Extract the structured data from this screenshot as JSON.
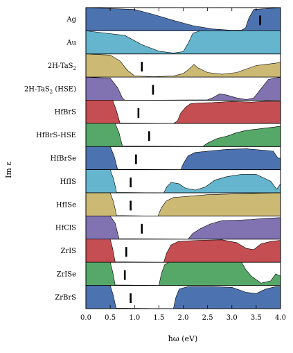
{
  "chart_data": {
    "type": "area",
    "title": "",
    "xlabel": "ħω (eV)",
    "ylabel": "Im ε",
    "xlim": [
      0.0,
      4.0
    ],
    "xticks": [
      "0.0",
      "0.5",
      "1.0",
      "1.5",
      "2.0",
      "2.5",
      "3.0",
      "3.5",
      "4.0"
    ],
    "grid": false,
    "legend": "none",
    "series": [
      {
        "name": "Ag",
        "color": "#4c72b0",
        "marker": 3.58,
        "values": [
          [
            0,
            1
          ],
          [
            1.0,
            0.92
          ],
          [
            1.4,
            0.7
          ],
          [
            1.8,
            0.45
          ],
          [
            2.2,
            0.22
          ],
          [
            2.6,
            0.08
          ],
          [
            3.0,
            0.02
          ],
          [
            3.2,
            0.03
          ],
          [
            3.28,
            0.12
          ],
          [
            3.35,
            0.55
          ],
          [
            3.45,
            0.92
          ],
          [
            4.0,
            1
          ]
        ]
      },
      {
        "name": "Au",
        "color": "#64b5cd",
        "marker": null,
        "values": [
          [
            0,
            1
          ],
          [
            0.8,
            0.8
          ],
          [
            1.15,
            0.4
          ],
          [
            1.5,
            0.12
          ],
          [
            1.8,
            0.04
          ],
          [
            2.0,
            0.1
          ],
          [
            2.1,
            0.45
          ],
          [
            2.2,
            0.9
          ],
          [
            2.35,
            1
          ],
          [
            4.0,
            1
          ]
        ]
      },
      {
        "name": "2H-TaS$_2$",
        "label_main": "2H-TaS",
        "label_sub": "2",
        "label_tail": "",
        "color": "#ccb974",
        "marker": 1.15,
        "values": [
          [
            0,
            1
          ],
          [
            0.5,
            0.95
          ],
          [
            0.7,
            0.7
          ],
          [
            0.85,
            0.3
          ],
          [
            1.0,
            0.05
          ],
          [
            1.4,
            0.02
          ],
          [
            1.8,
            0.05
          ],
          [
            2.0,
            0.15
          ],
          [
            2.15,
            0.4
          ],
          [
            2.22,
            0.55
          ],
          [
            2.3,
            0.4
          ],
          [
            2.5,
            0.2
          ],
          [
            2.8,
            0.12
          ],
          [
            3.1,
            0.2
          ],
          [
            3.3,
            0.35
          ],
          [
            3.5,
            0.5
          ],
          [
            3.7,
            0.55
          ],
          [
            3.9,
            0.6
          ],
          [
            4.0,
            0.65
          ]
        ]
      },
      {
        "name": "2H-TaS$_2$ (HSE)",
        "label_main": "2H-TaS",
        "label_sub": "2",
        "label_tail": " (HSE)",
        "color": "#8172b2",
        "marker": 1.38,
        "values": [
          [
            0,
            1
          ],
          [
            0.5,
            0.95
          ],
          [
            0.65,
            0.55
          ],
          [
            0.75,
            0.1
          ],
          [
            0.8,
            0.0
          ],
          [
            2.5,
            0.02
          ],
          [
            2.6,
            0.1
          ],
          [
            2.75,
            0.28
          ],
          [
            2.9,
            0.22
          ],
          [
            3.1,
            0.1
          ],
          [
            3.3,
            0.03
          ],
          [
            3.45,
            0.1
          ],
          [
            3.6,
            0.5
          ],
          [
            3.75,
            0.9
          ],
          [
            4.0,
            1
          ]
        ]
      },
      {
        "name": "HfBrS",
        "color": "#c44e52",
        "marker": 1.08,
        "values": [
          [
            0,
            1
          ],
          [
            0.55,
            1
          ],
          [
            0.62,
            0.6
          ],
          [
            0.7,
            0.02
          ],
          [
            1.8,
            0.0
          ],
          [
            1.88,
            0.1
          ],
          [
            1.95,
            0.45
          ],
          [
            2.05,
            0.7
          ],
          [
            2.15,
            0.85
          ],
          [
            2.3,
            0.88
          ],
          [
            2.6,
            0.9
          ],
          [
            3.0,
            0.95
          ],
          [
            3.4,
            0.92
          ],
          [
            3.7,
            0.96
          ],
          [
            4.0,
            0.95
          ]
        ]
      },
      {
        "name": "HfBrS-HSE",
        "color": "#55a868",
        "marker": 1.3,
        "values": [
          [
            0,
            1
          ],
          [
            0.6,
            1
          ],
          [
            0.68,
            0.6
          ],
          [
            0.75,
            0.02
          ],
          [
            2.4,
            0.0
          ],
          [
            2.5,
            0.15
          ],
          [
            2.7,
            0.35
          ],
          [
            2.9,
            0.45
          ],
          [
            3.1,
            0.6
          ],
          [
            3.3,
            0.7
          ],
          [
            3.5,
            0.75
          ],
          [
            3.7,
            0.8
          ],
          [
            3.9,
            0.85
          ],
          [
            4.0,
            0.88
          ]
        ]
      },
      {
        "name": "HfBrSe",
        "color": "#4c72b0",
        "marker": 1.03,
        "values": [
          [
            0,
            1
          ],
          [
            0.5,
            1
          ],
          [
            0.58,
            0.6
          ],
          [
            0.65,
            0.02
          ],
          [
            1.95,
            0.0
          ],
          [
            2.0,
            0.25
          ],
          [
            2.1,
            0.6
          ],
          [
            2.25,
            0.75
          ],
          [
            2.5,
            0.8
          ],
          [
            2.9,
            0.88
          ],
          [
            3.3,
            0.9
          ],
          [
            3.6,
            0.85
          ],
          [
            3.85,
            0.8
          ],
          [
            3.95,
            0.5
          ],
          [
            4.0,
            0.5
          ]
        ]
      },
      {
        "name": "HfIS",
        "color": "#64b5cd",
        "marker": 0.92,
        "values": [
          [
            0,
            1
          ],
          [
            0.5,
            1
          ],
          [
            0.57,
            0.6
          ],
          [
            0.63,
            0.02
          ],
          [
            1.6,
            0.0
          ],
          [
            1.66,
            0.25
          ],
          [
            1.75,
            0.45
          ],
          [
            1.9,
            0.4
          ],
          [
            2.05,
            0.2
          ],
          [
            2.25,
            0.12
          ],
          [
            2.45,
            0.25
          ],
          [
            2.65,
            0.55
          ],
          [
            2.9,
            0.7
          ],
          [
            3.2,
            0.8
          ],
          [
            3.5,
            0.8
          ],
          [
            3.8,
            0.5
          ],
          [
            3.92,
            0.15
          ],
          [
            4.0,
            0.4
          ]
        ]
      },
      {
        "name": "HfISe",
        "color": "#ccb974",
        "marker": 0.92,
        "values": [
          [
            0,
            1
          ],
          [
            0.5,
            1
          ],
          [
            0.57,
            0.6
          ],
          [
            0.63,
            0.02
          ],
          [
            1.48,
            0.0
          ],
          [
            1.55,
            0.35
          ],
          [
            1.65,
            0.65
          ],
          [
            1.8,
            0.8
          ],
          [
            2.1,
            0.85
          ],
          [
            2.5,
            0.92
          ],
          [
            3.0,
            0.95
          ],
          [
            3.5,
            0.98
          ],
          [
            4.0,
            1
          ]
        ]
      },
      {
        "name": "HfClS",
        "color": "#8172b2",
        "marker": 1.15,
        "values": [
          [
            0,
            1
          ],
          [
            0.5,
            1
          ],
          [
            0.6,
            0.7
          ],
          [
            0.68,
            0.02
          ],
          [
            2.1,
            0.0
          ],
          [
            2.2,
            0.25
          ],
          [
            2.35,
            0.45
          ],
          [
            2.55,
            0.65
          ],
          [
            2.8,
            0.8
          ],
          [
            3.1,
            0.82
          ],
          [
            3.4,
            0.85
          ],
          [
            3.7,
            0.9
          ],
          [
            4.0,
            0.93
          ]
        ]
      },
      {
        "name": "ZrIS",
        "color": "#c44e52",
        "marker": 0.83,
        "values": [
          [
            0,
            1
          ],
          [
            0.5,
            1
          ],
          [
            0.55,
            0.6
          ],
          [
            0.6,
            0.02
          ],
          [
            1.6,
            0.0
          ],
          [
            1.66,
            0.4
          ],
          [
            1.75,
            0.75
          ],
          [
            1.9,
            0.9
          ],
          [
            2.3,
            0.95
          ],
          [
            2.8,
            0.97
          ],
          [
            3.1,
            0.85
          ],
          [
            3.3,
            0.6
          ],
          [
            3.45,
            0.55
          ],
          [
            3.6,
            0.8
          ],
          [
            3.8,
            0.9
          ],
          [
            4.0,
            0.95
          ]
        ]
      },
      {
        "name": "ZrISe",
        "color": "#55a868",
        "marker": 0.8,
        "values": [
          [
            0,
            1
          ],
          [
            0.5,
            1
          ],
          [
            0.55,
            0.6
          ],
          [
            0.6,
            0.02
          ],
          [
            1.5,
            0.0
          ],
          [
            1.55,
            0.5
          ],
          [
            1.62,
            0.9
          ],
          [
            1.7,
            1
          ],
          [
            3.2,
            1
          ],
          [
            3.28,
            0.7
          ],
          [
            3.4,
            0.4
          ],
          [
            3.6,
            0.1
          ],
          [
            3.8,
            0.2
          ],
          [
            3.9,
            0.5
          ],
          [
            4.0,
            0.4
          ]
        ]
      },
      {
        "name": "ZrBrS",
        "color": "#4c72b0",
        "marker": 0.92,
        "values": [
          [
            0,
            1
          ],
          [
            0.5,
            1
          ],
          [
            0.56,
            0.6
          ],
          [
            0.62,
            0.02
          ],
          [
            1.8,
            0.0
          ],
          [
            1.85,
            0.5
          ],
          [
            1.92,
            0.85
          ],
          [
            2.1,
            0.95
          ],
          [
            2.6,
            0.95
          ],
          [
            3.0,
            0.92
          ],
          [
            3.3,
            0.7
          ],
          [
            3.5,
            0.65
          ],
          [
            3.7,
            0.85
          ],
          [
            3.9,
            0.95
          ],
          [
            4.0,
            0.95
          ]
        ]
      }
    ]
  }
}
